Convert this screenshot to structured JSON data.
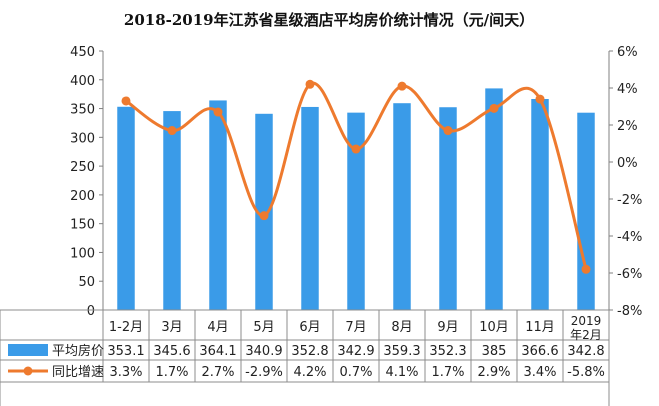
{
  "chart_data": {
    "type": "bar",
    "title": "2018-2019年江苏省星级酒店平均房价统计情况（元/间天）",
    "categories": [
      "1-2月",
      "3月",
      "4月",
      "5月",
      "6月",
      "7月",
      "8月",
      "9月",
      "10月",
      "11月",
      [
        "2019",
        "年2月"
      ]
    ],
    "series": [
      {
        "name": "平均房价",
        "type": "bar",
        "axis": "left",
        "color": "#3A9BE8",
        "values": [
          353.1,
          345.6,
          364.1,
          340.9,
          352.8,
          342.9,
          359.3,
          352.3,
          385,
          366.6,
          342.8
        ],
        "labels": [
          "353.1",
          "345.6",
          "364.1",
          "340.9",
          "352.8",
          "342.9",
          "359.3",
          "352.3",
          "385",
          "366.6",
          "342.8"
        ]
      },
      {
        "name": "同比增速",
        "type": "line",
        "axis": "right",
        "color": "#EE7A2E",
        "values": [
          3.3,
          1.7,
          2.7,
          -2.9,
          4.2,
          0.7,
          4.1,
          1.7,
          2.9,
          3.4,
          -5.8
        ],
        "labels": [
          "3.3%",
          "1.7%",
          "2.7%",
          "-2.9%",
          "4.2%",
          "0.7%",
          "4.1%",
          "1.7%",
          "2.9%",
          "3.4%",
          "-5.8%"
        ]
      }
    ],
    "y_left": {
      "min": 0,
      "max": 450,
      "step": 50,
      "ticks": [
        "0",
        "50",
        "100",
        "150",
        "200",
        "250",
        "300",
        "350",
        "400",
        "450"
      ]
    },
    "y_right": {
      "min": -8,
      "max": 6,
      "step": 2,
      "ticks": [
        "-8%",
        "-6%",
        "-4%",
        "-2%",
        "0%",
        "2%",
        "4%",
        "6%"
      ]
    },
    "grid": false,
    "legend": "data-table-left"
  }
}
